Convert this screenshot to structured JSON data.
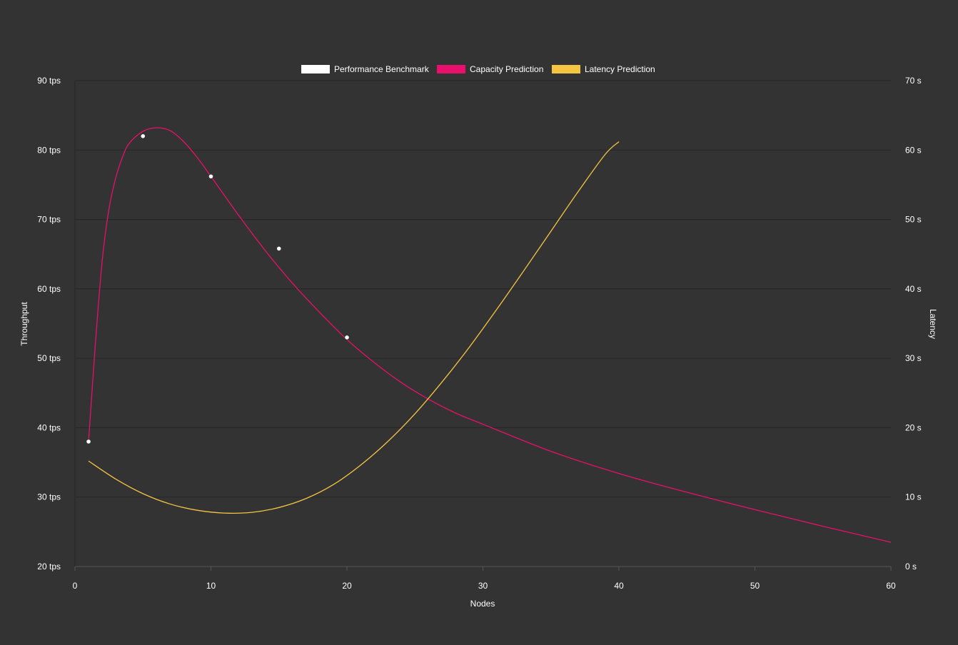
{
  "chart_data": {
    "type": "line",
    "xlabel": "Nodes",
    "ylabel_left": "Throughput",
    "ylabel_right": "Latency",
    "xlim": [
      0,
      60
    ],
    "ylim_left": [
      20,
      90
    ],
    "ylim_right": [
      0,
      70
    ],
    "x_ticks": [
      0,
      10,
      20,
      30,
      40,
      50,
      60
    ],
    "y_left_ticks": [
      "20 tps",
      "30 tps",
      "40 tps",
      "50 tps",
      "60 tps",
      "70 tps",
      "80 tps",
      "90 tps"
    ],
    "y_right_ticks": [
      "0 s",
      "10 s",
      "20 s",
      "30 s",
      "40 s",
      "50 s",
      "60 s",
      "70 s"
    ],
    "grid": true,
    "legend_position": "top-center",
    "series": [
      {
        "name": "Performance Benchmark",
        "kind": "scatter",
        "axis": "left",
        "color": "#ffffff",
        "points": [
          [
            1,
            38.0
          ],
          [
            5,
            82.0
          ],
          [
            10,
            76.2
          ],
          [
            15,
            65.8
          ],
          [
            20,
            53.0
          ]
        ]
      },
      {
        "name": "Capacity Prediction",
        "kind": "line",
        "axis": "left",
        "color": "#e8106a",
        "points": [
          [
            1,
            38.0
          ],
          [
            1.5,
            52.0
          ],
          [
            2,
            64.0
          ],
          [
            2.5,
            71.5
          ],
          [
            3,
            76.0
          ],
          [
            3.5,
            79.0
          ],
          [
            4,
            81.0
          ],
          [
            5,
            82.7
          ],
          [
            6,
            83.2
          ],
          [
            7,
            82.8
          ],
          [
            8,
            81.2
          ],
          [
            9,
            78.9
          ],
          [
            10,
            76.2
          ],
          [
            12,
            70.7
          ],
          [
            14,
            65.5
          ],
          [
            16,
            60.8
          ],
          [
            18,
            56.6
          ],
          [
            20,
            52.7
          ],
          [
            22,
            49.4
          ],
          [
            24,
            46.5
          ],
          [
            26,
            44.1
          ],
          [
            28,
            42.1
          ],
          [
            30,
            40.5
          ],
          [
            35,
            36.6
          ],
          [
            40,
            33.4
          ],
          [
            45,
            30.7
          ],
          [
            50,
            28.2
          ],
          [
            55,
            25.8
          ],
          [
            60,
            23.5
          ]
        ]
      },
      {
        "name": "Latency Prediction",
        "kind": "line",
        "axis": "right",
        "color": "#f5c542",
        "points": [
          [
            1,
            15.2
          ],
          [
            3,
            12.6
          ],
          [
            5,
            10.5
          ],
          [
            7,
            9.0
          ],
          [
            9,
            8.1
          ],
          [
            11,
            7.7
          ],
          [
            13,
            7.8
          ],
          [
            15,
            8.5
          ],
          [
            17,
            9.8
          ],
          [
            19,
            11.8
          ],
          [
            21,
            14.6
          ],
          [
            23,
            18.0
          ],
          [
            25,
            22.0
          ],
          [
            27,
            26.6
          ],
          [
            29,
            31.6
          ],
          [
            31,
            37.0
          ],
          [
            33,
            42.6
          ],
          [
            35,
            48.3
          ],
          [
            37,
            54.0
          ],
          [
            39,
            59.4
          ],
          [
            40,
            61.2
          ]
        ]
      }
    ]
  }
}
